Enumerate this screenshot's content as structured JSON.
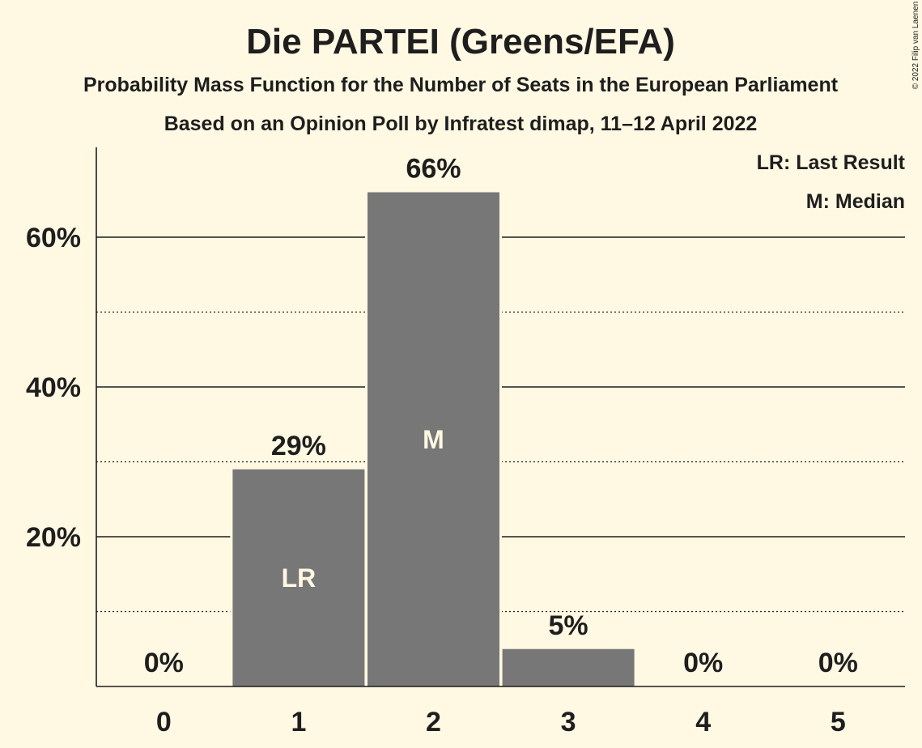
{
  "colors": {
    "background": "#fff8e2",
    "bar": "#777777",
    "text": "#1e1e1e",
    "bar_marker_text": "#fff8e2"
  },
  "header": {
    "title": "Die PARTEI (Greens/EFA)",
    "subtitle1": "Probability Mass Function for the Number of Seats in the European Parliament",
    "subtitle2": "Based on an Opinion Poll by Infratest dimap, 11–12 April 2022",
    "copyright": "© 2022 Filip van Laenen"
  },
  "legend": {
    "last_result": "LR: Last Result",
    "median": "M: Median"
  },
  "chart_data": {
    "type": "bar",
    "title": "Die PARTEI (Greens/EFA)",
    "categories": [
      "0",
      "1",
      "2",
      "3",
      "4",
      "5"
    ],
    "values": [
      0,
      29,
      66,
      5,
      0,
      0
    ],
    "value_labels": [
      "0%",
      "29%",
      "66%",
      "5%",
      "0%",
      "0%"
    ],
    "bar_markers": [
      "",
      "LR",
      "M",
      "",
      "",
      ""
    ],
    "ylim": [
      0,
      72
    ],
    "yticks_major": [
      20,
      40,
      60
    ],
    "ytick_labels": [
      "20%",
      "40%",
      "60%"
    ],
    "yticks_minor": [
      10,
      30,
      50
    ],
    "grid": true,
    "legend_placement": "top-right"
  }
}
